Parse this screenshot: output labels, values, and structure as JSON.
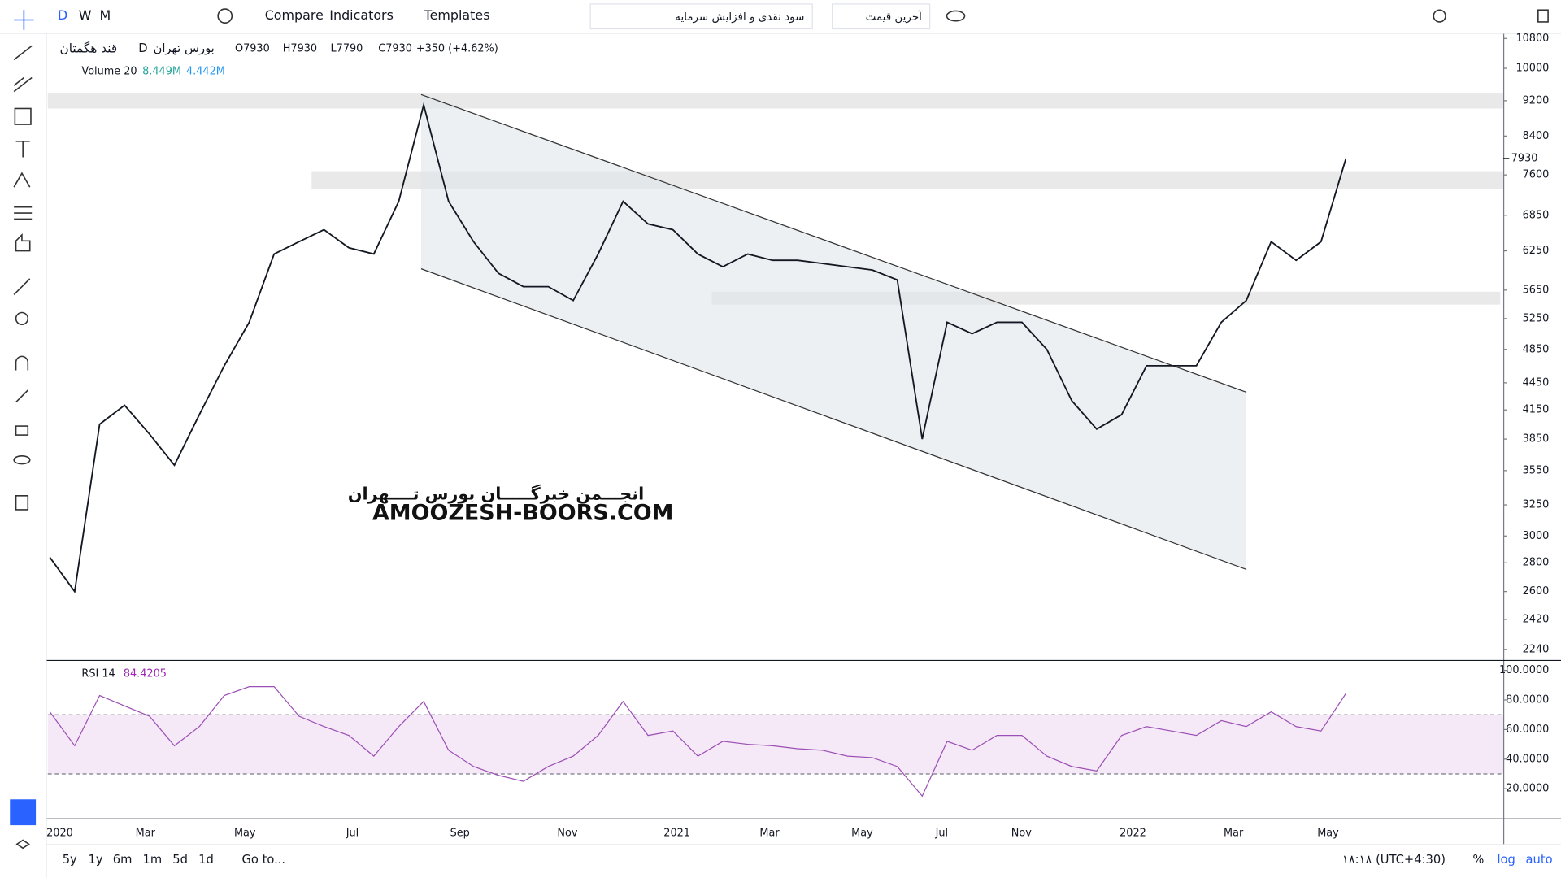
{
  "toolbar": {
    "intervals": [
      "D",
      "W",
      "M"
    ],
    "compare": "Compare",
    "indicators": "Indicators",
    "templates": "Templates",
    "symbol_search": "سود نقدی و افزایش سرمایه",
    "price_type": "آخرین قیمت"
  },
  "legend": {
    "symbol": "قند هگمتان",
    "interval": "D",
    "exchange": "بورس تهران",
    "ohlc": [
      "O7930",
      "H7930",
      "L7790",
      "C7930",
      "+350 (+4.62%)"
    ],
    "volume": [
      "Volume 20",
      "8.449M",
      "4.442M"
    ],
    "rsi": [
      "RSI 14",
      "84.4205"
    ]
  },
  "watermark": [
    "انجـــمن خبرگـــــان بورس تــــهران",
    "AMOOZESH-BOORS.COM"
  ],
  "chart_data": [
    {
      "type": "line",
      "color": "#131722",
      "log": true,
      "ylim": [
        2180,
        10900
      ],
      "yticks": [
        10800,
        10000,
        9200,
        8400,
        7600,
        6850,
        6250,
        5650,
        5250,
        4850,
        4450,
        4150,
        3850,
        3550,
        3250,
        3000,
        2800,
        2600,
        2420,
        2240
      ],
      "last_price": 7930,
      "values": [
        2840,
        2600,
        4000,
        4200,
        3900,
        3600,
        4100,
        4650,
        5200,
        6200,
        6400,
        6600,
        6300,
        6200,
        7100,
        9100,
        7100,
        6400,
        5900,
        5700,
        5700,
        5500,
        6200,
        7100,
        6700,
        6600,
        6200,
        6000,
        6200,
        6100,
        6100,
        6050,
        6000,
        5950,
        5800,
        3850,
        5200,
        5050,
        5200,
        5200,
        4850,
        4250,
        3950,
        4100,
        4650,
        4650,
        4650,
        5200,
        5500,
        6400,
        6100,
        6400,
        7930
      ]
    },
    {
      "type": "line",
      "color": "#9c4fb5",
      "ylim": [
        0,
        105
      ],
      "yticks": [
        {
          "value": 100,
          "label": "100.0000"
        },
        {
          "value": 80,
          "label": "80.0000"
        },
        {
          "value": 60,
          "label": "60.0000"
        },
        {
          "value": 40,
          "label": "40.0000"
        },
        {
          "value": 20,
          "label": "20.0000"
        }
      ],
      "band": [
        30,
        70
      ],
      "values": [
        72,
        49,
        83,
        76,
        69,
        49,
        62,
        83,
        89,
        89,
        69,
        62,
        56,
        42,
        62,
        79,
        46,
        35,
        29,
        25,
        35,
        42,
        56,
        79,
        56,
        59,
        42,
        52,
        50,
        49,
        47,
        46,
        42,
        41,
        35,
        15,
        52,
        46,
        56,
        56,
        42,
        35,
        32,
        56,
        62,
        59,
        56,
        66,
        62,
        72,
        62,
        59,
        84.4205
      ]
    }
  ],
  "time_axis": [
    "2020",
    "Mar",
    "May",
    "Jul",
    "Sep",
    "Nov",
    "2021",
    "Mar",
    "May",
    "Jul",
    "Nov",
    "2022",
    "Mar",
    "May"
  ],
  "bottom": {
    "ranges": [
      "5y",
      "1y",
      "6m",
      "1m",
      "5d",
      "1d"
    ],
    "goto": "Go to...",
    "clock": "۱۸:۱۸ (UTC+4:30)",
    "percent": "%",
    "log": "log",
    "auto": "auto"
  }
}
